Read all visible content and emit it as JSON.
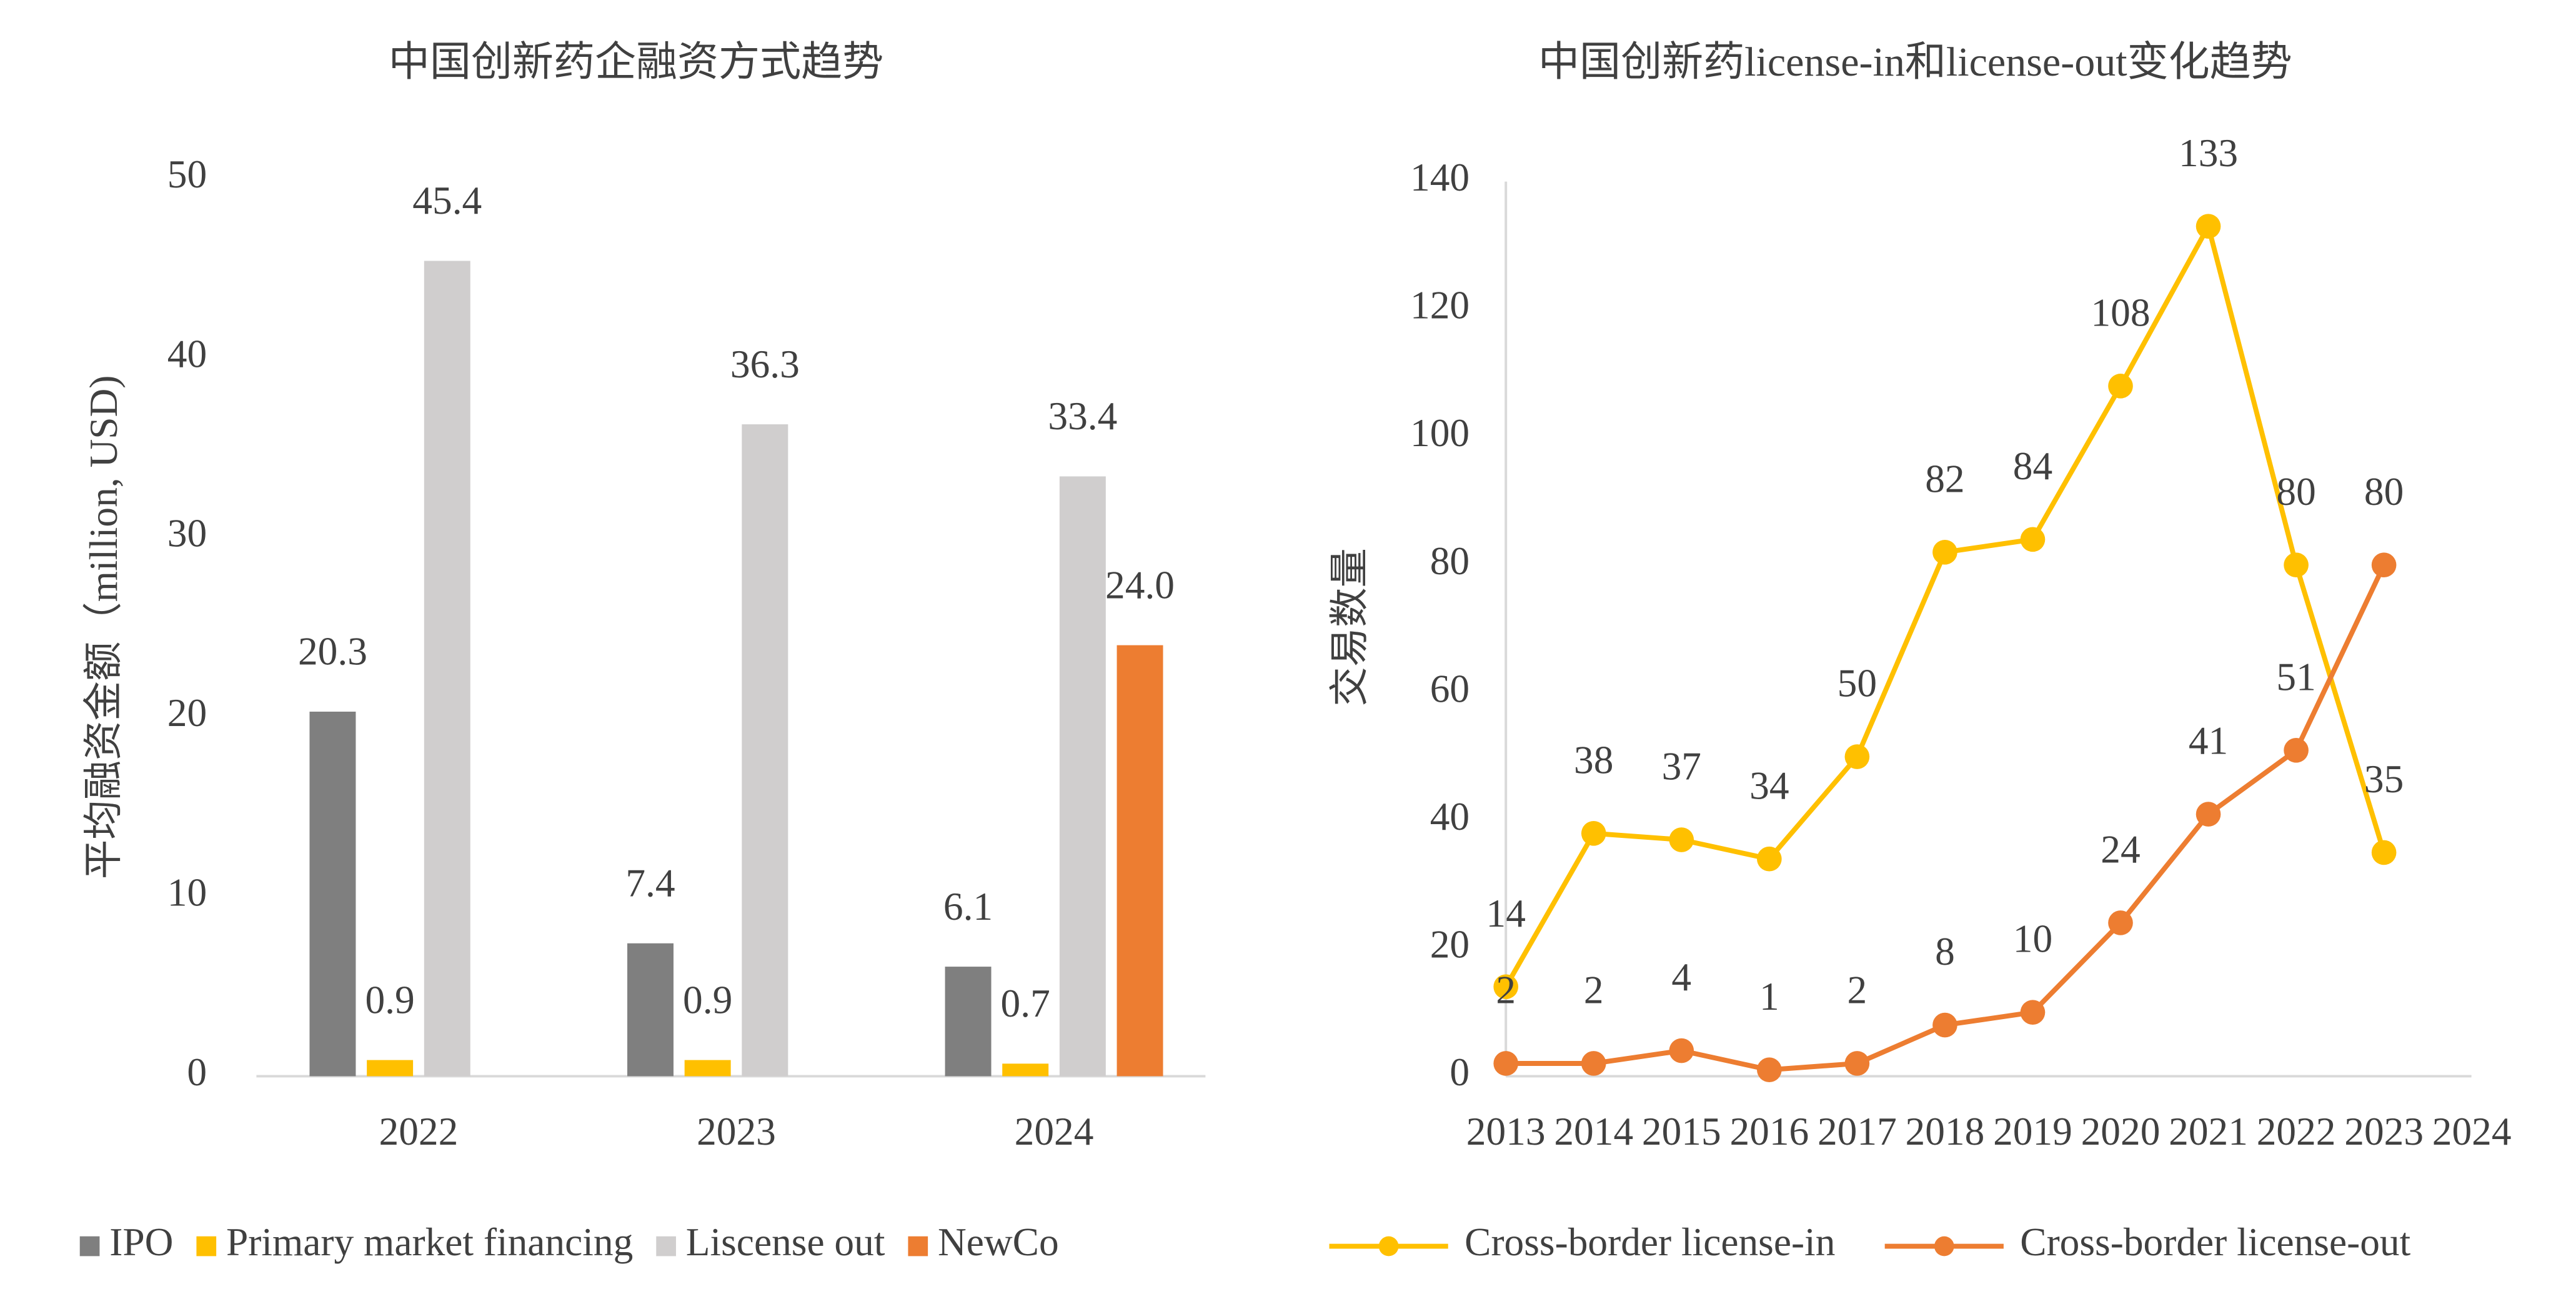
{
  "chart_data": [
    {
      "type": "bar",
      "title": "中国创新药企融资方式趋势",
      "y_label": "平均融资金额（million, USD)",
      "categories": [
        "2022",
        "2023",
        "2024"
      ],
      "series": [
        {
          "name": "IPO",
          "color": "#7f7f7f",
          "values": [
            20.3,
            7.4,
            6.1
          ],
          "value_labels": [
            "20.3",
            "7.4",
            "6.1"
          ]
        },
        {
          "name": "Primary market financing",
          "color": "#ffc000",
          "values": [
            0.9,
            0.9,
            0.7
          ],
          "value_labels": [
            "0.9",
            "0.9",
            "0.7"
          ]
        },
        {
          "name": "Liscense out",
          "color": "#d0cece",
          "values": [
            45.4,
            36.3,
            33.4
          ],
          "value_labels": [
            "45.4",
            "36.3",
            "33.4"
          ]
        },
        {
          "name": "NewCo",
          "color": "#ed7d31",
          "values": [
            null,
            null,
            24.0
          ],
          "value_labels": [
            null,
            null,
            "24.0"
          ]
        }
      ],
      "ylim": [
        0,
        50
      ],
      "yticks": [
        0,
        10,
        20,
        30,
        40,
        50
      ],
      "grid": false,
      "legend": "bottom"
    },
    {
      "type": "line",
      "title": "中国创新药license-in和license-out变化趋势",
      "y_label": "交易数量",
      "categories": [
        "2013",
        "2014",
        "2015",
        "2016",
        "2017",
        "2018",
        "2019",
        "2020",
        "2021",
        "2022",
        "2023",
        "2024"
      ],
      "series": [
        {
          "name": "Cross-border license-in",
          "color": "#ffc000",
          "values": [
            14,
            38,
            37,
            34,
            50,
            82,
            84,
            108,
            133,
            80,
            35,
            null
          ]
        },
        {
          "name": "Cross-border license-out",
          "color": "#ed7d31",
          "values": [
            2,
            2,
            4,
            1,
            2,
            8,
            10,
            24,
            41,
            51,
            80,
            null
          ]
        }
      ],
      "ylim": [
        0,
        140
      ],
      "yticks": [
        0,
        20,
        40,
        60,
        80,
        100,
        120,
        140
      ],
      "grid": false,
      "legend": "bottom"
    }
  ]
}
